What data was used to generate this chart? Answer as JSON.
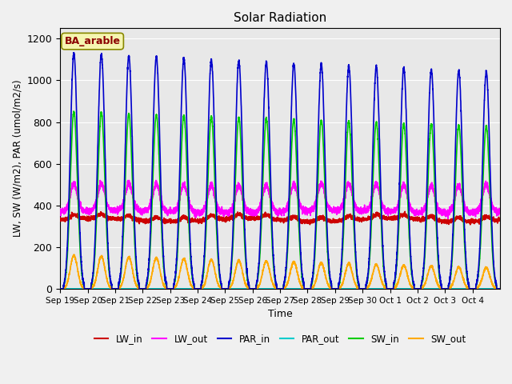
{
  "title": "Solar Radiation",
  "ylabel": "LW, SW (W/m2), PAR (umol/m2/s)",
  "xlabel": "Time",
  "annotation": "BA_arable",
  "ylim": [
    0,
    1250
  ],
  "background_color": "#e8e8e8",
  "n_days": 16,
  "series": {
    "LW_in": {
      "color": "#cc0000",
      "lw": 1.2
    },
    "LW_out": {
      "color": "#ff00ff",
      "lw": 1.2
    },
    "PAR_in": {
      "color": "#0000cc",
      "lw": 1.2
    },
    "PAR_out": {
      "color": "#00cccc",
      "lw": 1.2
    },
    "SW_in": {
      "color": "#00cc00",
      "lw": 1.2
    },
    "SW_out": {
      "color": "#ffaa00",
      "lw": 1.2
    }
  },
  "xtick_labels": [
    "Sep 19",
    "Sep 20",
    "Sep 21",
    "Sep 22",
    "Sep 23",
    "Sep 24",
    "Sep 25",
    "Sep 26",
    "Sep 27",
    "Sep 28",
    "Sep 29",
    "Sep 30",
    "Oct 1",
    "Oct 2",
    "Oct 3",
    "Oct 4"
  ],
  "xtick_positions": [
    0,
    1,
    2,
    3,
    4,
    5,
    6,
    7,
    8,
    9,
    10,
    11,
    12,
    13,
    14,
    15
  ],
  "ytick_labels": [
    "0",
    "200",
    "400",
    "600",
    "800",
    "1000",
    "1200"
  ],
  "ytick_values": [
    0,
    200,
    400,
    600,
    800,
    1000,
    1200
  ]
}
